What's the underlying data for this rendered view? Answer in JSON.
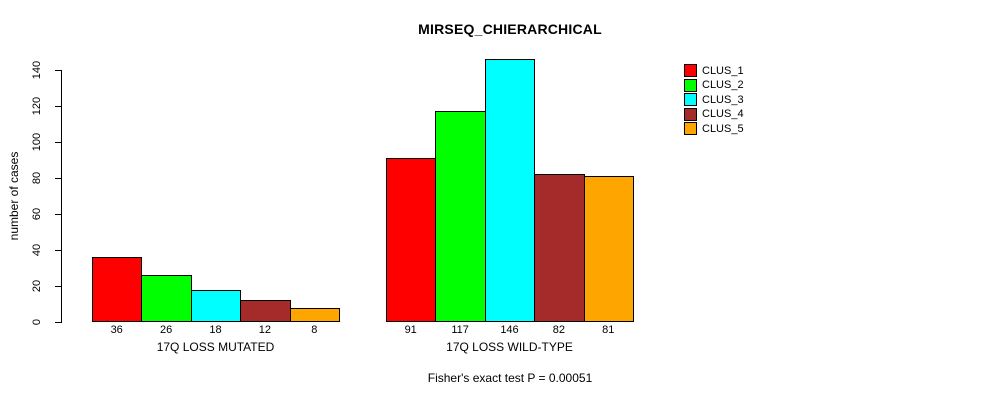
{
  "chart_data": {
    "type": "bar",
    "title": "MIRSEQ_CHIERARCHICAL",
    "ylabel": "number of cases",
    "xlabel": "",
    "ylim": [
      0,
      140
    ],
    "yticks": [
      0,
      20,
      40,
      60,
      80,
      100,
      120,
      140
    ],
    "grid": false,
    "legend_position": "top-right",
    "categories": [
      "17Q LOSS MUTATED",
      "17Q LOSS WILD-TYPE"
    ],
    "series": [
      {
        "name": "CLUS_1",
        "color": "#FF0000",
        "values": [
          36,
          91
        ]
      },
      {
        "name": "CLUS_2",
        "color": "#00FF00",
        "values": [
          26,
          117
        ]
      },
      {
        "name": "CLUS_3",
        "color": "#00FFFF",
        "values": [
          18,
          146
        ]
      },
      {
        "name": "CLUS_4",
        "color": "#A52A2A",
        "values": [
          12,
          82
        ]
      },
      {
        "name": "CLUS_5",
        "color": "#FFA500",
        "values": [
          8,
          81
        ]
      }
    ],
    "bar_value_labels": [
      [
        36,
        26,
        18,
        12,
        8
      ],
      [
        91,
        117,
        146,
        82,
        81
      ]
    ],
    "annotation": "Fisher's exact test P = 0.00051",
    "axis_color": "#000000",
    "bar_border_color": "#000000"
  }
}
